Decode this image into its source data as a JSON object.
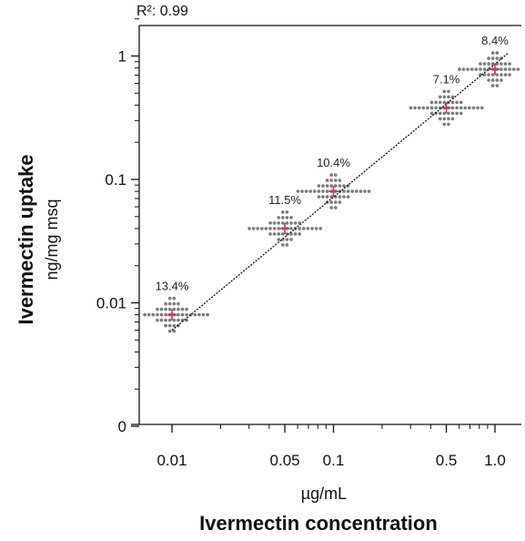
{
  "chart_data": {
    "type": "scatter",
    "r2_label": "R²: 0.99",
    "xlabel": "Ivermectin concentration",
    "xunit": "µg/mL",
    "ylabel": "Ivermectin uptake",
    "yunit": "ng/mg msq",
    "x_scale": "log",
    "y_scale": "log",
    "x_ticks": [
      {
        "value": 0.01,
        "label": "0.01"
      },
      {
        "value": 0.05,
        "label": "0.05"
      },
      {
        "value": 0.1,
        "label": "0.1"
      },
      {
        "value": 0.5,
        "label": "0.5"
      },
      {
        "value": 1.0,
        "label": "1.0"
      }
    ],
    "y_ticks": [
      {
        "value": 1,
        "label": "1"
      },
      {
        "value": 0.1,
        "label": "0.1"
      },
      {
        "value": 0.01,
        "label": "0.01"
      },
      {
        "value": 0.001,
        "label": "0"
      }
    ],
    "groups": [
      {
        "x": 0.01,
        "mean": 0.008,
        "cv_label": "13.4%"
      },
      {
        "x": 0.05,
        "mean": 0.04,
        "cv_label": "11.5%"
      },
      {
        "x": 0.1,
        "mean": 0.08,
        "cv_label": "10.4%"
      },
      {
        "x": 0.5,
        "mean": 0.38,
        "cv_label": "7.1%"
      },
      {
        "x": 1.0,
        "mean": 0.78,
        "cv_label": "8.4%"
      }
    ],
    "fit_line": {
      "x": [
        0.01,
        1.2
      ],
      "y": [
        0.006,
        1.05
      ]
    },
    "colors": {
      "points": "#7a7a7a",
      "mean_marker": "#d0305a",
      "fit_line": "#111111",
      "axis": "#111111"
    },
    "grid": false
  }
}
